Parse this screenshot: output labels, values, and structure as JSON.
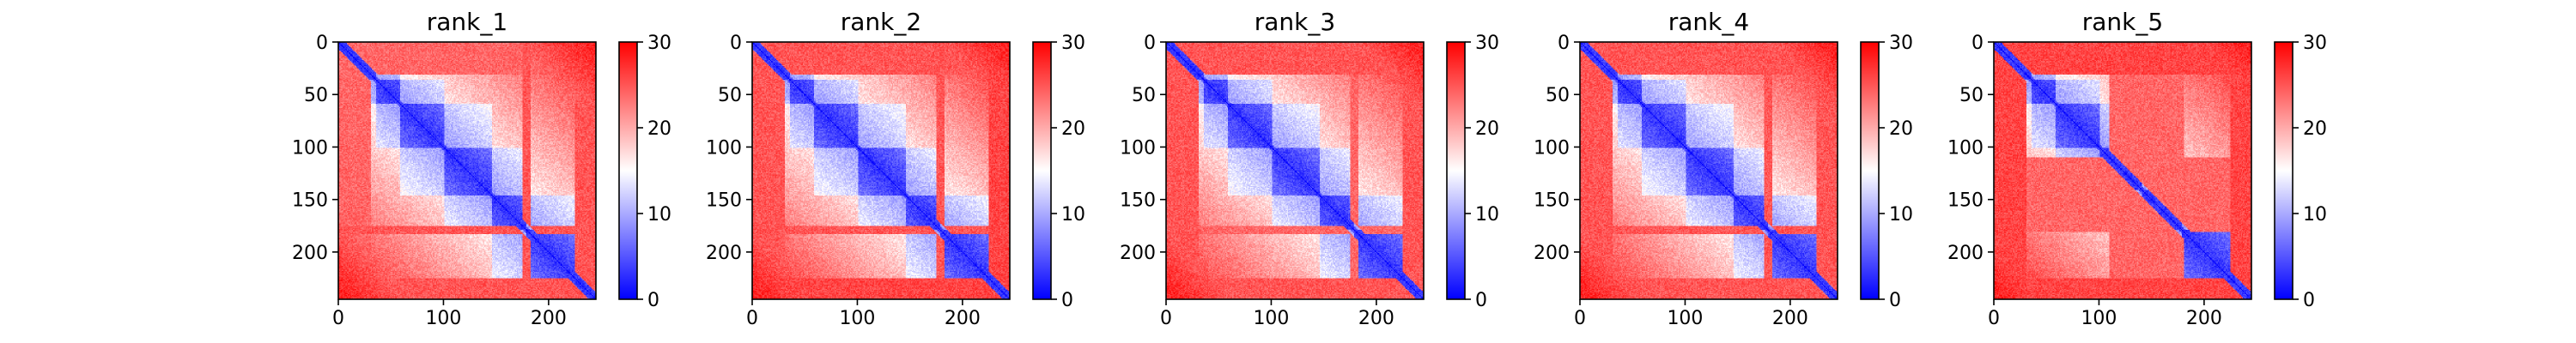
{
  "chart_data": [
    {
      "type": "heatmap",
      "title": "rank_1",
      "xlabel": "",
      "ylabel": "",
      "n": 245,
      "xlim": [
        0,
        245
      ],
      "ylim": [
        245,
        0
      ],
      "x_ticks": [
        0,
        100,
        200
      ],
      "y_ticks": [
        0,
        50,
        100,
        150,
        200
      ],
      "colorbar": {
        "vmin": 0,
        "vmax": 30,
        "ticks": [
          0,
          10,
          20,
          30
        ],
        "colormap": "bwr"
      },
      "domains": [
        [
          0,
          35
        ],
        [
          36,
          58
        ],
        [
          59,
          100
        ],
        [
          101,
          145
        ],
        [
          146,
          178
        ],
        [
          179,
          245
        ]
      ],
      "high_bands": [
        {
          "start": 0,
          "end": 30,
          "value": 26
        },
        {
          "start": 175,
          "end": 182,
          "value": 27
        },
        {
          "start": 225,
          "end": 245,
          "value": 27
        }
      ]
    },
    {
      "type": "heatmap",
      "title": "rank_2",
      "xlabel": "",
      "ylabel": "",
      "n": 245,
      "xlim": [
        0,
        245
      ],
      "ylim": [
        245,
        0
      ],
      "x_ticks": [
        0,
        100,
        200
      ],
      "y_ticks": [
        0,
        50,
        100,
        150,
        200
      ],
      "colorbar": {
        "vmin": 0,
        "vmax": 30,
        "ticks": [
          0,
          10,
          20,
          30
        ],
        "colormap": "bwr"
      },
      "domains": [
        [
          0,
          35
        ],
        [
          36,
          58
        ],
        [
          59,
          100
        ],
        [
          101,
          145
        ],
        [
          146,
          178
        ],
        [
          179,
          245
        ]
      ],
      "high_bands": [
        {
          "start": 0,
          "end": 30,
          "value": 27
        },
        {
          "start": 175,
          "end": 182,
          "value": 27
        },
        {
          "start": 225,
          "end": 245,
          "value": 28
        }
      ]
    },
    {
      "type": "heatmap",
      "title": "rank_3",
      "xlabel": "",
      "ylabel": "",
      "n": 245,
      "xlim": [
        0,
        245
      ],
      "ylim": [
        245,
        0
      ],
      "x_ticks": [
        0,
        100,
        200
      ],
      "y_ticks": [
        0,
        50,
        100,
        150,
        200
      ],
      "colorbar": {
        "vmin": 0,
        "vmax": 30,
        "ticks": [
          0,
          10,
          20,
          30
        ],
        "colormap": "bwr"
      },
      "domains": [
        [
          0,
          35
        ],
        [
          36,
          58
        ],
        [
          59,
          100
        ],
        [
          101,
          145
        ],
        [
          146,
          178
        ],
        [
          179,
          245
        ]
      ],
      "high_bands": [
        {
          "start": 0,
          "end": 30,
          "value": 27
        },
        {
          "start": 175,
          "end": 182,
          "value": 26
        },
        {
          "start": 225,
          "end": 245,
          "value": 27
        }
      ]
    },
    {
      "type": "heatmap",
      "title": "rank_4",
      "xlabel": "",
      "ylabel": "",
      "n": 245,
      "xlim": [
        0,
        245
      ],
      "ylim": [
        245,
        0
      ],
      "x_ticks": [
        0,
        100,
        200
      ],
      "y_ticks": [
        0,
        50,
        100,
        150,
        200
      ],
      "colorbar": {
        "vmin": 0,
        "vmax": 30,
        "ticks": [
          0,
          10,
          20,
          30
        ],
        "colormap": "bwr"
      },
      "domains": [
        [
          0,
          35
        ],
        [
          36,
          58
        ],
        [
          59,
          100
        ],
        [
          101,
          145
        ],
        [
          146,
          178
        ],
        [
          179,
          245
        ]
      ],
      "high_bands": [
        {
          "start": 0,
          "end": 30,
          "value": 27
        },
        {
          "start": 175,
          "end": 182,
          "value": 27
        },
        {
          "start": 225,
          "end": 245,
          "value": 27
        }
      ]
    },
    {
      "type": "heatmap",
      "title": "rank_5",
      "xlabel": "",
      "ylabel": "",
      "n": 245,
      "xlim": [
        0,
        245
      ],
      "ylim": [
        245,
        0
      ],
      "x_ticks": [
        0,
        100,
        200
      ],
      "y_ticks": [
        0,
        50,
        100,
        150,
        200
      ],
      "colorbar": {
        "vmin": 0,
        "vmax": 30,
        "ticks": [
          0,
          10,
          20,
          30
        ],
        "colormap": "bwr"
      },
      "domains": [
        [
          0,
          35
        ],
        [
          36,
          58
        ],
        [
          59,
          100
        ],
        [
          101,
          140
        ],
        [
          141,
          178
        ],
        [
          179,
          245
        ]
      ],
      "high_bands": [
        {
          "start": 0,
          "end": 30,
          "value": 28
        },
        {
          "start": 110,
          "end": 180,
          "value": 26
        },
        {
          "start": 225,
          "end": 245,
          "value": 28
        }
      ]
    }
  ]
}
